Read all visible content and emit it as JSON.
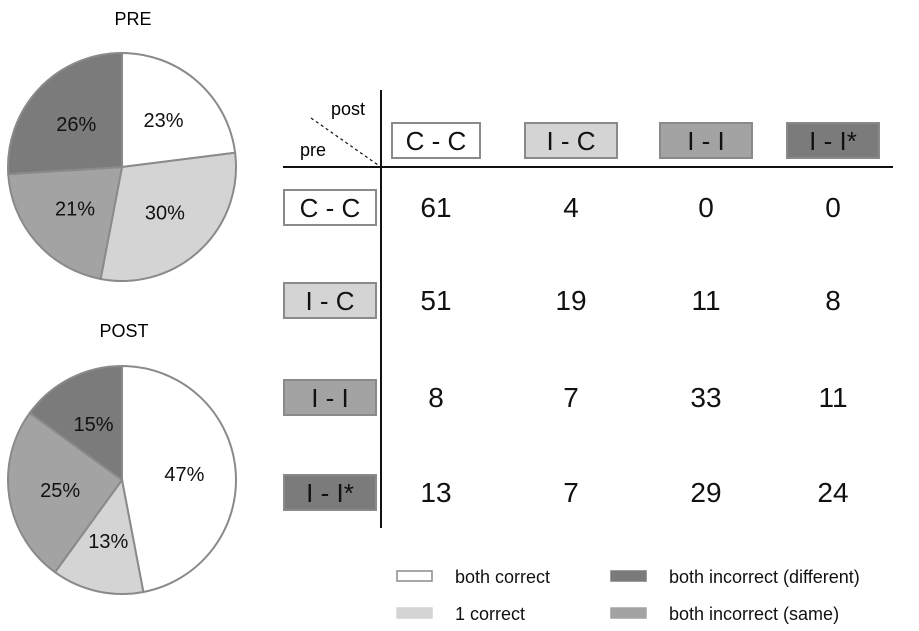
{
  "chart_data": [
    {
      "type": "pie",
      "title": "PRE",
      "slices": [
        {
          "label": "23%",
          "value": 23,
          "category": "both correct",
          "color": "#ffffff"
        },
        {
          "label": "30%",
          "value": 30,
          "category": "1 correct",
          "color": "#d4d4d4"
        },
        {
          "label": "21%",
          "value": 21,
          "category": "both incorrect (same)",
          "color": "#a3a3a3"
        },
        {
          "label": "26%",
          "value": 26,
          "category": "both incorrect (different)",
          "color": "#7b7b7b"
        }
      ]
    },
    {
      "type": "pie",
      "title": "POST",
      "slices": [
        {
          "label": "47%",
          "value": 47,
          "category": "both correct",
          "color": "#ffffff"
        },
        {
          "label": "13%",
          "value": 13,
          "category": "1 correct",
          "color": "#d4d4d4"
        },
        {
          "label": "25%",
          "value": 25,
          "category": "both incorrect (same)",
          "color": "#a3a3a3"
        },
        {
          "label": "15%",
          "value": 15,
          "category": "both incorrect (different)",
          "color": "#7b7b7b"
        }
      ]
    },
    {
      "type": "table",
      "corner": {
        "col_label": "post",
        "row_label": "pre"
      },
      "columns": [
        {
          "label": "C - C",
          "color": "#ffffff"
        },
        {
          "label": "I - C",
          "color": "#d4d4d4"
        },
        {
          "label": "I - I",
          "color": "#a3a3a3"
        },
        {
          "label": "I - I*",
          "color": "#7b7b7b"
        }
      ],
      "rows": [
        {
          "label": "C - C",
          "color": "#ffffff",
          "values": [
            "61",
            "4",
            "0",
            "0"
          ]
        },
        {
          "label": "I - C",
          "color": "#d4d4d4",
          "values": [
            "51",
            "19",
            "11",
            "8"
          ]
        },
        {
          "label": "I - I",
          "color": "#a3a3a3",
          "values": [
            "8",
            "7",
            "33",
            "11"
          ]
        },
        {
          "label": "I - I*",
          "color": "#7b7b7b",
          "values": [
            "13",
            "7",
            "29",
            "24"
          ]
        }
      ]
    }
  ],
  "legend": {
    "items": [
      {
        "label": "both correct",
        "color": "#ffffff"
      },
      {
        "label": "1 correct",
        "color": "#d4d4d4"
      },
      {
        "label": "both incorrect (different)",
        "color": "#7b7b7b"
      },
      {
        "label": "both incorrect (same)",
        "color": "#a3a3a3"
      }
    ]
  },
  "colors": {
    "stroke": "#8a8a8a",
    "text": "#111111"
  }
}
